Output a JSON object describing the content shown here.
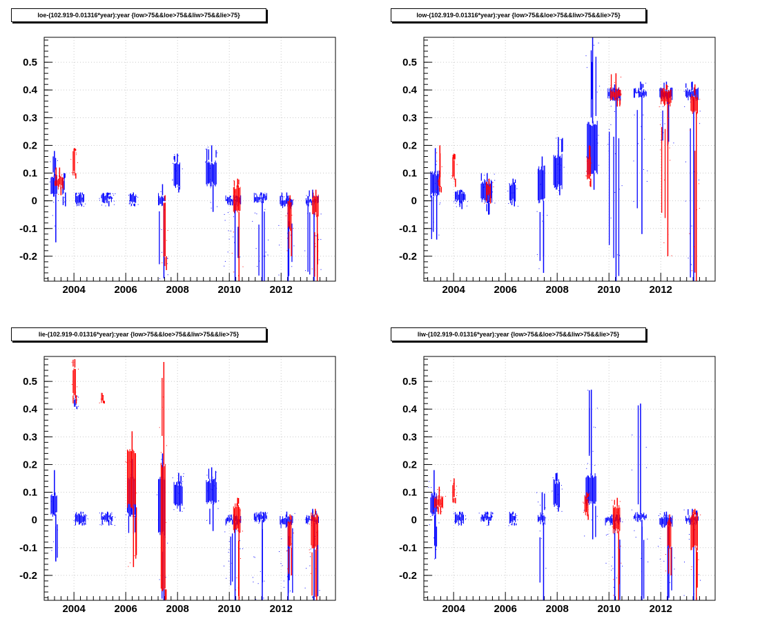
{
  "chart_data": [
    {
      "type": "scatter",
      "title": "loe-(102.919-0.01316*year):year {low>75&&loe>75&&liw>75&&lie>75}",
      "xlim": [
        2002.85,
        2014.1
      ],
      "ylim": [
        -0.29,
        0.59
      ],
      "xticks": [
        "2004",
        "2006",
        "2008",
        "2010",
        "2012"
      ],
      "yticks": [
        "0.5",
        "0.4",
        "0.3",
        "0.2",
        "0.1",
        "0",
        "-0.1",
        "-0.2"
      ],
      "grid": true,
      "series": [
        {
          "color": "#0000ff",
          "clusters": [
            [
              2003.1,
              2003.35,
              0.02,
              0.09,
              -0.15,
              0.18
            ],
            [
              2003.55,
              2003.65,
              0.03,
              0.08,
              -0.02,
              0.1
            ],
            [
              2004.05,
              2004.4,
              -0.01,
              0.02,
              -0.02,
              0.03
            ],
            [
              2005.05,
              2005.5,
              0.0,
              0.02,
              -0.02,
              0.03
            ],
            [
              2006.15,
              2006.4,
              -0.01,
              0.02,
              -0.02,
              0.03
            ],
            [
              2007.25,
              2007.55,
              -0.01,
              0.02,
              -0.28,
              0.06
            ],
            [
              2007.85,
              2008.1,
              0.05,
              0.14,
              0.03,
              0.17
            ],
            [
              2009.1,
              2009.5,
              0.06,
              0.14,
              -0.04,
              0.2
            ],
            [
              2009.85,
              2010.45,
              -0.01,
              0.01,
              -0.29,
              0.02
            ],
            [
              2010.95,
              2011.45,
              0.0,
              0.02,
              -0.29,
              0.03
            ],
            [
              2011.95,
              2012.45,
              -0.02,
              0.01,
              -0.29,
              0.03
            ],
            [
              2012.95,
              2013.45,
              -0.01,
              0.01,
              -0.29,
              0.04
            ]
          ]
        },
        {
          "color": "#ff0000",
          "clusters": [
            [
              2003.25,
              2003.6,
              0.05,
              0.08,
              0.02,
              0.12
            ],
            [
              2003.95,
              2004.05,
              0.1,
              0.18,
              0.08,
              0.19
            ],
            [
              2007.45,
              2007.55,
              -0.2,
              0.0,
              -0.25,
              0.02
            ],
            [
              2010.15,
              2010.45,
              -0.04,
              0.05,
              -0.29,
              0.08
            ],
            [
              2012.25,
              2012.4,
              -0.1,
              0.0,
              -0.2,
              0.02
            ],
            [
              2013.2,
              2013.45,
              -0.05,
              0.02,
              -0.29,
              0.04
            ]
          ]
        }
      ]
    },
    {
      "type": "scatter",
      "title": "low-(102.919-0.01316*year):year {low>75&&loe>75&&liw>75&&lie>75}",
      "xlim": [
        2002.85,
        2014.1
      ],
      "ylim": [
        -0.29,
        0.59
      ],
      "xticks": [
        "2004",
        "2006",
        "2008",
        "2010",
        "2012"
      ],
      "yticks": [
        "0.5",
        "0.4",
        "0.3",
        "0.2",
        "0.1",
        "0",
        "-0.1",
        "-0.2"
      ],
      "grid": true,
      "series": [
        {
          "color": "#0000ff",
          "clusters": [
            [
              2003.1,
              2003.45,
              0.02,
              0.1,
              -0.14,
              0.19
            ],
            [
              2004.05,
              2004.45,
              0.0,
              0.03,
              -0.03,
              0.04
            ],
            [
              2005.05,
              2005.5,
              0.0,
              0.07,
              -0.05,
              0.1
            ],
            [
              2006.15,
              2006.4,
              0.0,
              0.06,
              -0.02,
              0.08
            ],
            [
              2007.25,
              2007.55,
              0.0,
              0.12,
              -0.26,
              0.16
            ],
            [
              2007.85,
              2008.2,
              0.05,
              0.16,
              0.02,
              0.23
            ],
            [
              2009.15,
              2009.55,
              0.1,
              0.28,
              0.04,
              0.59
            ],
            [
              2009.95,
              2010.45,
              0.37,
              0.4,
              -0.29,
              0.42
            ],
            [
              2010.95,
              2011.45,
              0.38,
              0.4,
              -0.12,
              0.43
            ],
            [
              2011.95,
              2012.45,
              0.37,
              0.4,
              0.2,
              0.43
            ],
            [
              2012.95,
              2013.45,
              0.37,
              0.4,
              -0.29,
              0.43
            ]
          ]
        },
        {
          "color": "#ff0000",
          "clusters": [
            [
              2003.4,
              2003.5,
              0.05,
              0.08,
              0.03,
              0.2
            ],
            [
              2003.95,
              2004.05,
              0.08,
              0.15,
              0.05,
              0.17
            ],
            [
              2005.25,
              2005.45,
              0.02,
              0.06,
              -0.01,
              0.08
            ],
            [
              2009.15,
              2009.3,
              0.08,
              0.15,
              0.05,
              0.2
            ],
            [
              2010.05,
              2010.45,
              0.37,
              0.4,
              0.34,
              0.46
            ],
            [
              2012.0,
              2012.4,
              0.35,
              0.4,
              -0.2,
              0.42
            ],
            [
              2013.15,
              2013.45,
              0.32,
              0.38,
              -0.29,
              0.42
            ]
          ]
        }
      ]
    },
    {
      "type": "scatter",
      "title": "lie-(102.919-0.01316*year):year {low>75&&loe>75&&liw>75&&lie>75}",
      "xlim": [
        2002.85,
        2014.1
      ],
      "ylim": [
        -0.29,
        0.59
      ],
      "xticks": [
        "2004",
        "2006",
        "2008",
        "2010",
        "2012"
      ],
      "yticks": [
        "0.5",
        "0.4",
        "0.3",
        "0.2",
        "0.1",
        "0",
        "-0.1",
        "-0.2"
      ],
      "grid": true,
      "series": [
        {
          "color": "#0000ff",
          "clusters": [
            [
              2003.1,
              2003.35,
              0.02,
              0.09,
              -0.15,
              0.18
            ],
            [
              2004.0,
              2004.08,
              0.41,
              0.44,
              0.4,
              0.45
            ],
            [
              2004.05,
              2004.45,
              -0.01,
              0.02,
              -0.02,
              0.03
            ],
            [
              2005.05,
              2005.5,
              0.0,
              0.02,
              -0.02,
              0.03
            ],
            [
              2006.05,
              2006.4,
              0.02,
              0.15,
              -0.05,
              0.22
            ],
            [
              2007.25,
              2007.55,
              -0.05,
              0.15,
              -0.29,
              0.24
            ],
            [
              2007.85,
              2008.2,
              0.05,
              0.13,
              0.03,
              0.17
            ],
            [
              2009.1,
              2009.5,
              0.06,
              0.14,
              -0.04,
              0.19
            ],
            [
              2009.85,
              2010.45,
              -0.01,
              0.01,
              -0.29,
              0.02
            ],
            [
              2010.95,
              2011.45,
              0.0,
              0.02,
              -0.29,
              0.03
            ],
            [
              2011.95,
              2012.45,
              -0.02,
              0.01,
              -0.29,
              0.03
            ],
            [
              2012.95,
              2013.45,
              -0.01,
              0.01,
              -0.29,
              0.04
            ]
          ]
        },
        {
          "color": "#ff0000",
          "clusters": [
            [
              2003.95,
              2004.08,
              0.45,
              0.55,
              0.42,
              0.58
            ],
            [
              2005.05,
              2005.15,
              0.43,
              0.45,
              0.42,
              0.45
            ],
            [
              2006.05,
              2006.4,
              0.05,
              0.25,
              -0.17,
              0.32
            ],
            [
              2007.35,
              2007.55,
              -0.25,
              0.2,
              -0.29,
              0.57
            ],
            [
              2010.15,
              2010.45,
              -0.04,
              0.05,
              -0.29,
              0.08
            ],
            [
              2012.25,
              2012.4,
              -0.1,
              0.0,
              -0.2,
              0.02
            ],
            [
              2013.15,
              2013.45,
              -0.1,
              0.02,
              -0.29,
              0.04
            ]
          ]
        }
      ]
    },
    {
      "type": "scatter",
      "title": "liw-(102.919-0.01316*year):year {low>75&&loe>75&&liw>75&&lie>75}",
      "xlim": [
        2002.85,
        2014.1
      ],
      "ylim": [
        -0.29,
        0.59
      ],
      "xticks": [
        "2004",
        "2006",
        "2008",
        "2010",
        "2012"
      ],
      "yticks": [
        "0.5",
        "0.4",
        "0.3",
        "0.2",
        "0.1",
        "0",
        "-0.1",
        "-0.2"
      ],
      "grid": true,
      "series": [
        {
          "color": "#0000ff",
          "clusters": [
            [
              2003.1,
              2003.35,
              0.02,
              0.09,
              -0.14,
              0.18
            ],
            [
              2004.05,
              2004.4,
              -0.01,
              0.02,
              -0.02,
              0.03
            ],
            [
              2005.05,
              2005.5,
              0.0,
              0.02,
              -0.02,
              0.03
            ],
            [
              2006.15,
              2006.4,
              -0.01,
              0.02,
              -0.02,
              0.03
            ],
            [
              2007.25,
              2007.55,
              -0.01,
              0.02,
              -0.29,
              0.1
            ],
            [
              2007.85,
              2008.1,
              0.05,
              0.14,
              0.03,
              0.17
            ],
            [
              2009.1,
              2009.5,
              0.06,
              0.16,
              -0.07,
              0.47
            ],
            [
              2009.85,
              2010.45,
              -0.01,
              0.01,
              -0.29,
              0.02
            ],
            [
              2010.95,
              2011.45,
              0.0,
              0.02,
              -0.29,
              0.42
            ],
            [
              2011.95,
              2012.45,
              -0.02,
              0.01,
              -0.29,
              0.03
            ],
            [
              2012.95,
              2013.45,
              -0.01,
              0.01,
              -0.29,
              0.04
            ]
          ]
        },
        {
          "color": "#ff0000",
          "clusters": [
            [
              2003.25,
              2003.6,
              0.05,
              0.08,
              0.02,
              0.12
            ],
            [
              2003.95,
              2004.05,
              0.08,
              0.13,
              0.06,
              0.15
            ],
            [
              2009.05,
              2009.2,
              0.02,
              0.08,
              0.0,
              0.1
            ],
            [
              2010.15,
              2010.45,
              -0.04,
              0.05,
              -0.29,
              0.08
            ],
            [
              2012.25,
              2012.4,
              -0.1,
              0.0,
              -0.2,
              0.02
            ],
            [
              2013.15,
              2013.45,
              -0.1,
              0.02,
              -0.29,
              0.04
            ]
          ]
        }
      ]
    }
  ]
}
